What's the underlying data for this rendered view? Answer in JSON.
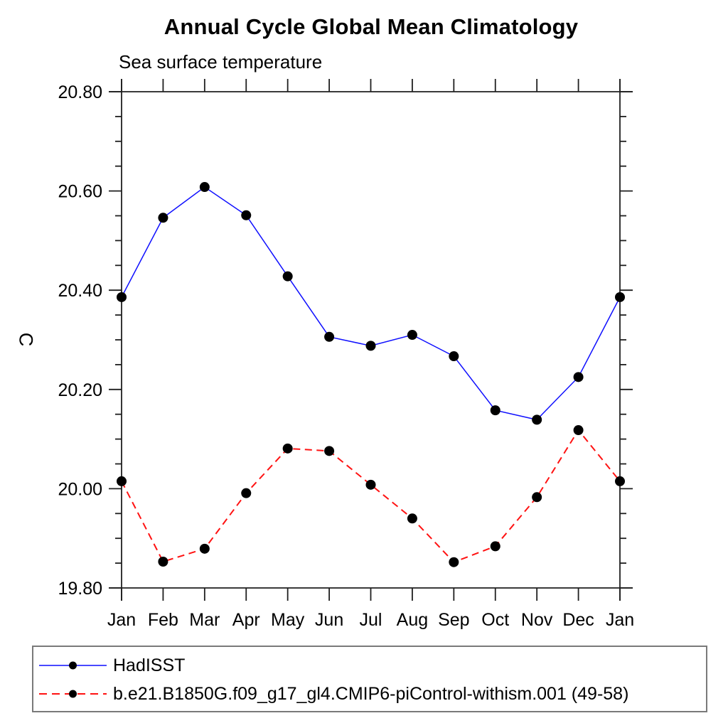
{
  "page": {
    "background": "#ffffff",
    "axis_color": "#1f1f1f",
    "text_color": "#000000",
    "legend_border_color": "#7a7a7a"
  },
  "chart_data": {
    "type": "line",
    "title": "Annual Cycle Global Mean Climatology",
    "subtitle": "Sea surface temperature",
    "ylabel": "C",
    "xlabel": "",
    "categories": [
      "Jan",
      "Feb",
      "Mar",
      "Apr",
      "May",
      "Jun",
      "Jul",
      "Aug",
      "Sep",
      "Oct",
      "Nov",
      "Dec",
      "Jan"
    ],
    "ylim": [
      19.8,
      20.8
    ],
    "ytick_major_step": 0.2,
    "ytick_minor_step": 0.05,
    "ytick_labels": [
      "19.80",
      "20.00",
      "20.20",
      "20.40",
      "20.60",
      "20.80"
    ],
    "grid": false,
    "legend_position": "bottom-left-box",
    "series": [
      {
        "name": "HadISST",
        "color": "#0f0fff",
        "style": "solid",
        "marker": "circle",
        "marker_color": "#000000",
        "values": [
          20.386,
          20.546,
          20.608,
          20.551,
          20.428,
          20.306,
          20.288,
          20.31,
          20.267,
          20.158,
          20.139,
          20.225,
          20.386
        ]
      },
      {
        "name": "b.e21.B1850G.f09_g17_gl4.CMIP6-piControl-withism.001 (49-58)",
        "color": "#ff1212",
        "style": "dashed",
        "marker": "circle",
        "marker_color": "#000000",
        "values": [
          20.015,
          19.853,
          19.879,
          19.991,
          20.081,
          20.076,
          20.008,
          19.94,
          19.852,
          19.884,
          19.983,
          20.118,
          20.015
        ]
      }
    ]
  }
}
